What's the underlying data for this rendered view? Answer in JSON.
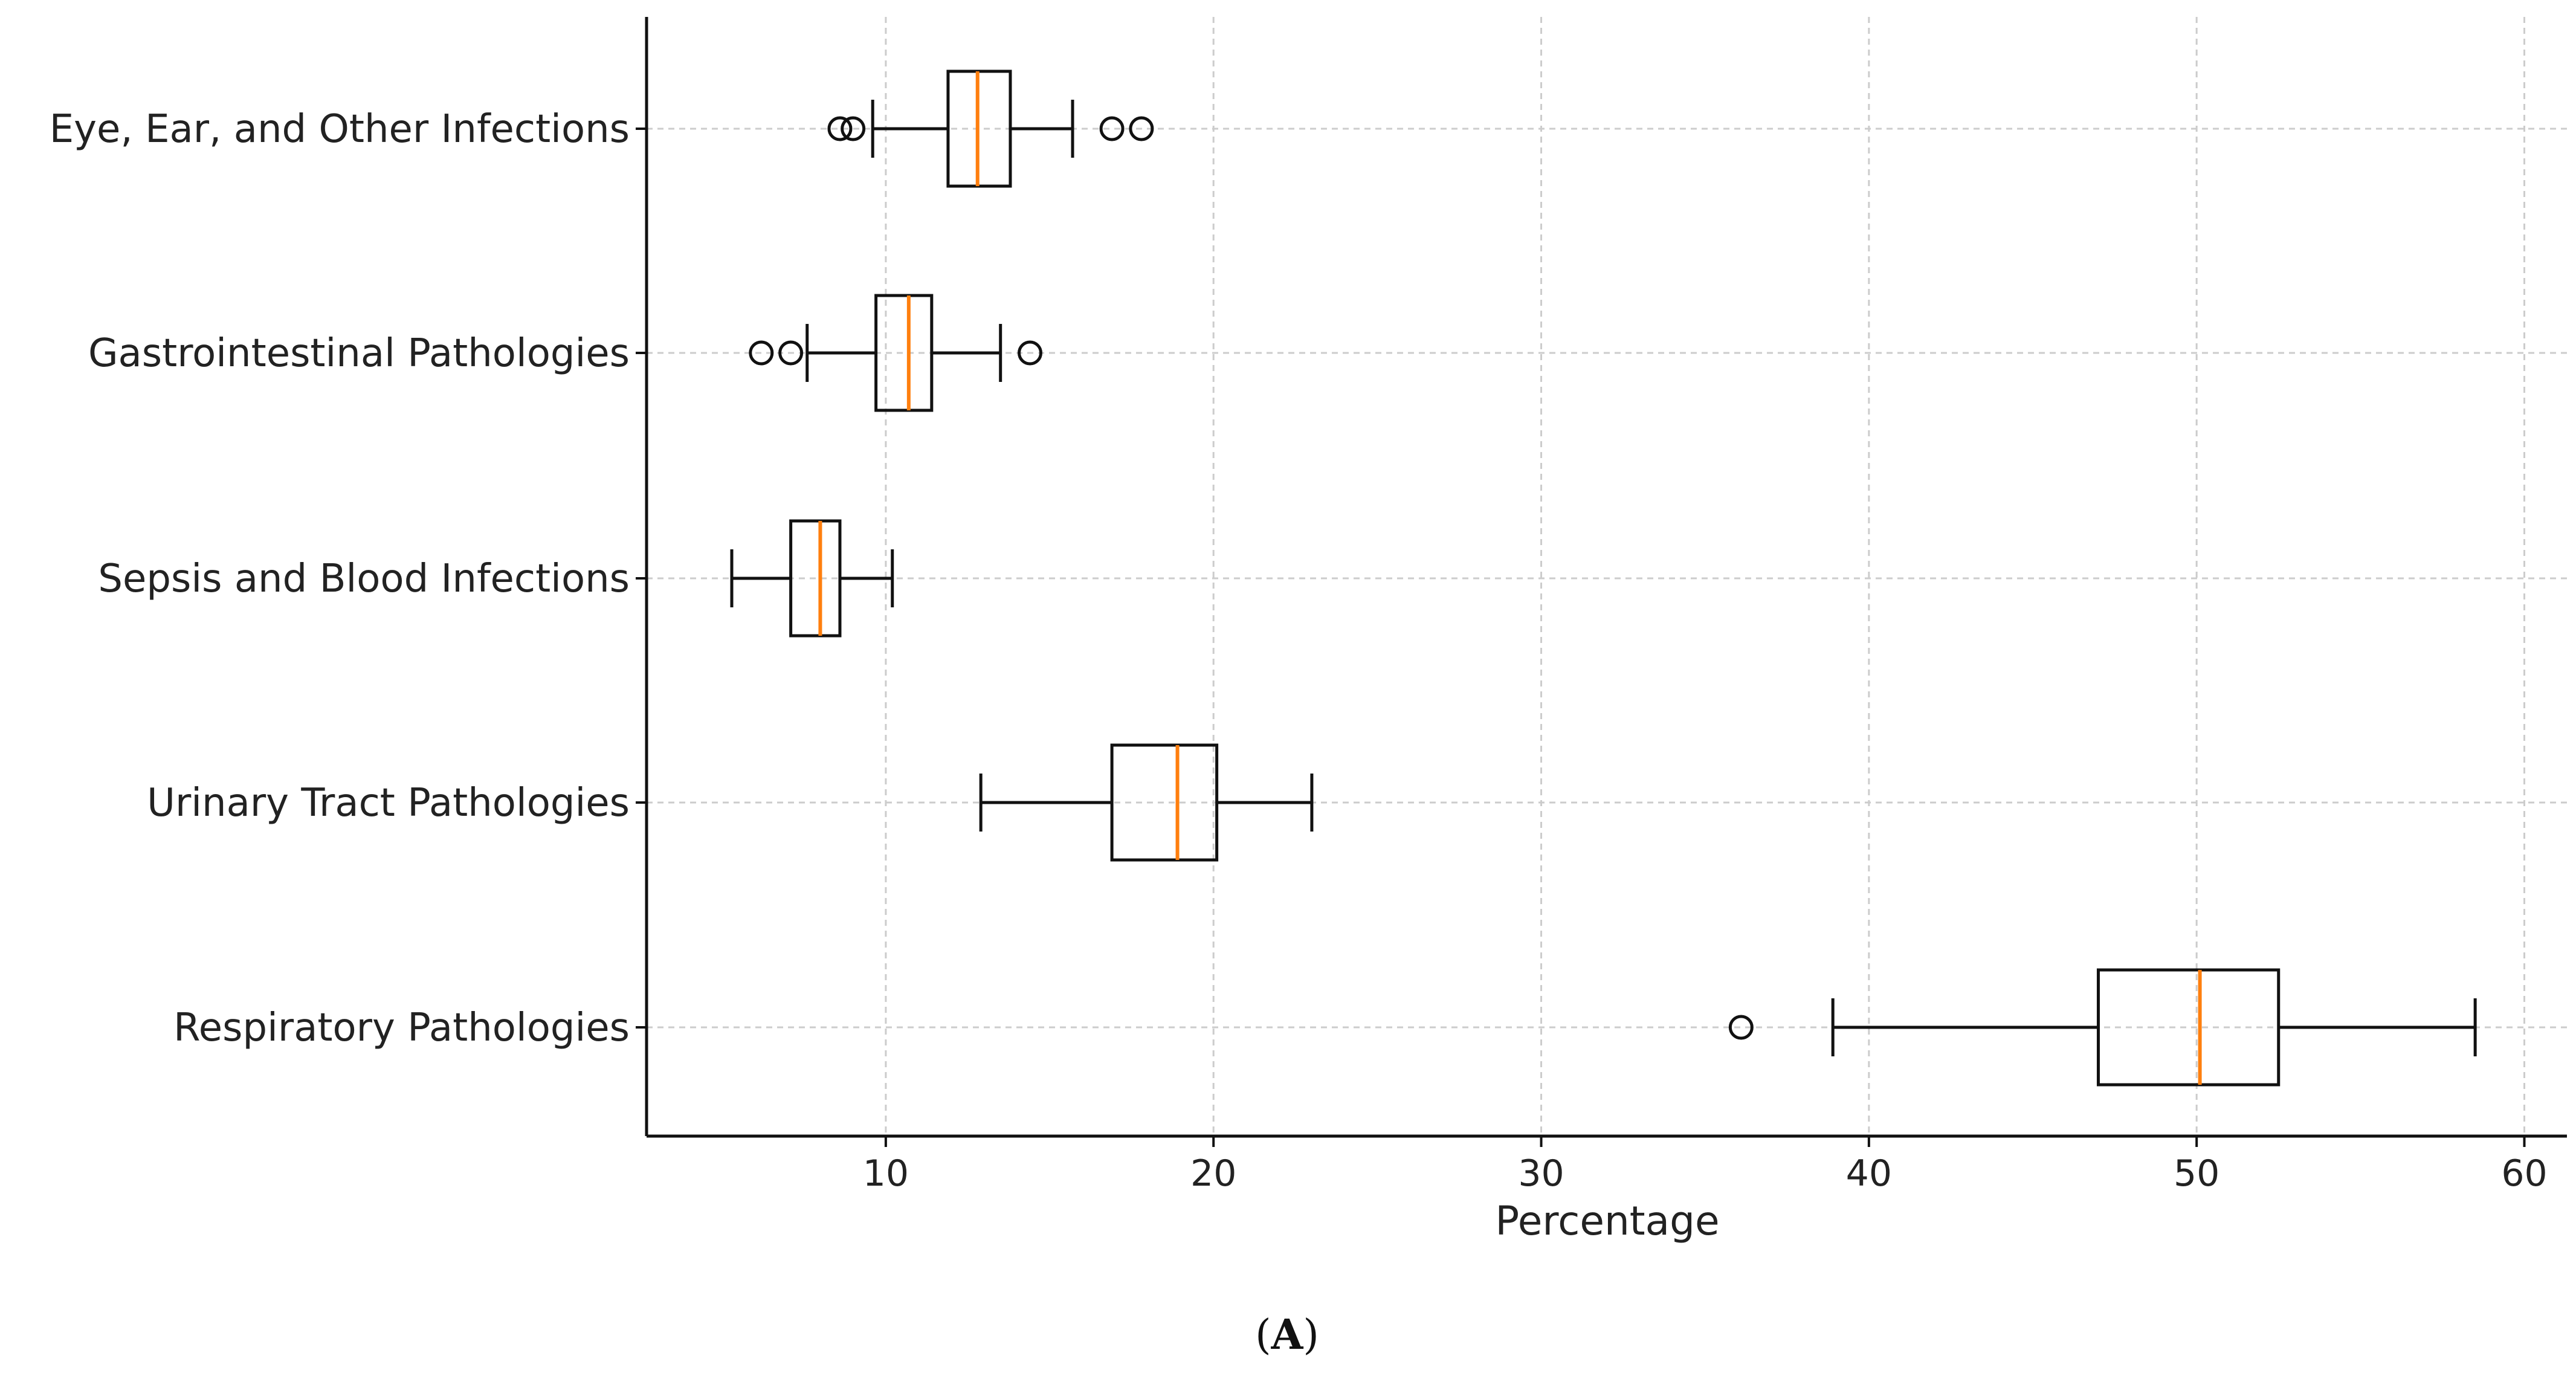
{
  "chart_data": {
    "type": "boxplot",
    "orientation": "horizontal",
    "title": "",
    "xlabel": "Percentage",
    "ylabel": "",
    "xlim": [
      2.7,
      61.3
    ],
    "xticks": [
      10,
      20,
      30,
      40,
      50,
      60
    ],
    "xtick_labels": [
      "10",
      "20",
      "30",
      "40",
      "50",
      "60"
    ],
    "grid": true,
    "categories": [
      "Eye, Ear, and Other Infections",
      "Gastrointestinal Pathologies",
      "Sepsis and Blood Infections",
      "Urinary Tract Pathologies",
      "Respiratory Pathologies"
    ],
    "boxes": [
      {
        "category": "Eye, Ear, and Other Infections",
        "whisker_low": 9.6,
        "q1": 11.9,
        "median": 12.8,
        "q3": 13.8,
        "whisker_high": 15.7,
        "outliers": [
          8.6,
          9.0,
          16.9,
          17.8
        ]
      },
      {
        "category": "Gastrointestinal Pathologies",
        "whisker_low": 7.6,
        "q1": 9.7,
        "median": 10.7,
        "q3": 11.4,
        "whisker_high": 13.5,
        "outliers": [
          6.2,
          7.1,
          14.4
        ]
      },
      {
        "category": "Sepsis and Blood Infections",
        "whisker_low": 5.3,
        "q1": 7.1,
        "median": 8.0,
        "q3": 8.6,
        "whisker_high": 10.2,
        "outliers": []
      },
      {
        "category": "Urinary Tract Pathologies",
        "whisker_low": 12.9,
        "q1": 16.9,
        "median": 18.9,
        "q3": 20.1,
        "whisker_high": 23.0,
        "outliers": []
      },
      {
        "category": "Respiratory Pathologies",
        "whisker_low": 38.9,
        "q1": 47.0,
        "median": 50.1,
        "q3": 52.5,
        "whisker_high": 58.5,
        "outliers": [
          36.1
        ]
      }
    ],
    "colors": {
      "box": "#111111",
      "median": "#ff7f0e",
      "grid": "#cccccc"
    }
  },
  "caption": {
    "open": "(",
    "letter": "A",
    "close": ")"
  }
}
